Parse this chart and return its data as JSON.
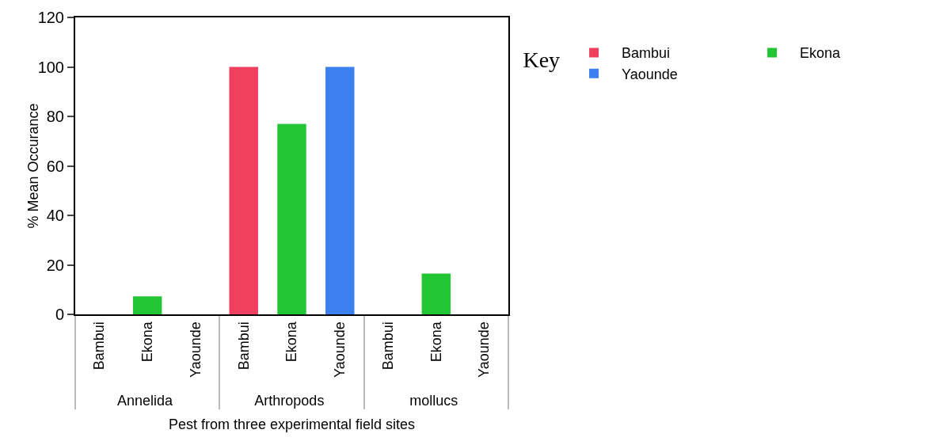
{
  "chart_data": {
    "type": "bar",
    "xlabel": "Pest from three experimental field sites",
    "ylabel": "% Mean Occurance",
    "legend_title": "Key",
    "categories": [
      "Annelida",
      "Arthropods",
      "mollucs"
    ],
    "series": [
      {
        "name": "Bambui",
        "color": "#f0405f",
        "values": [
          0,
          100,
          0
        ]
      },
      {
        "name": "Ekona",
        "color": "#22c634",
        "values": [
          7.3,
          77,
          16.5
        ]
      },
      {
        "name": "Yaounde",
        "color": "#3b7ff0",
        "values": [
          0,
          100,
          0
        ]
      }
    ],
    "ylim": [
      0,
      120
    ],
    "yticks": [
      0,
      20,
      40,
      60,
      80,
      100,
      120
    ],
    "grid": false,
    "legend": "top right"
  }
}
